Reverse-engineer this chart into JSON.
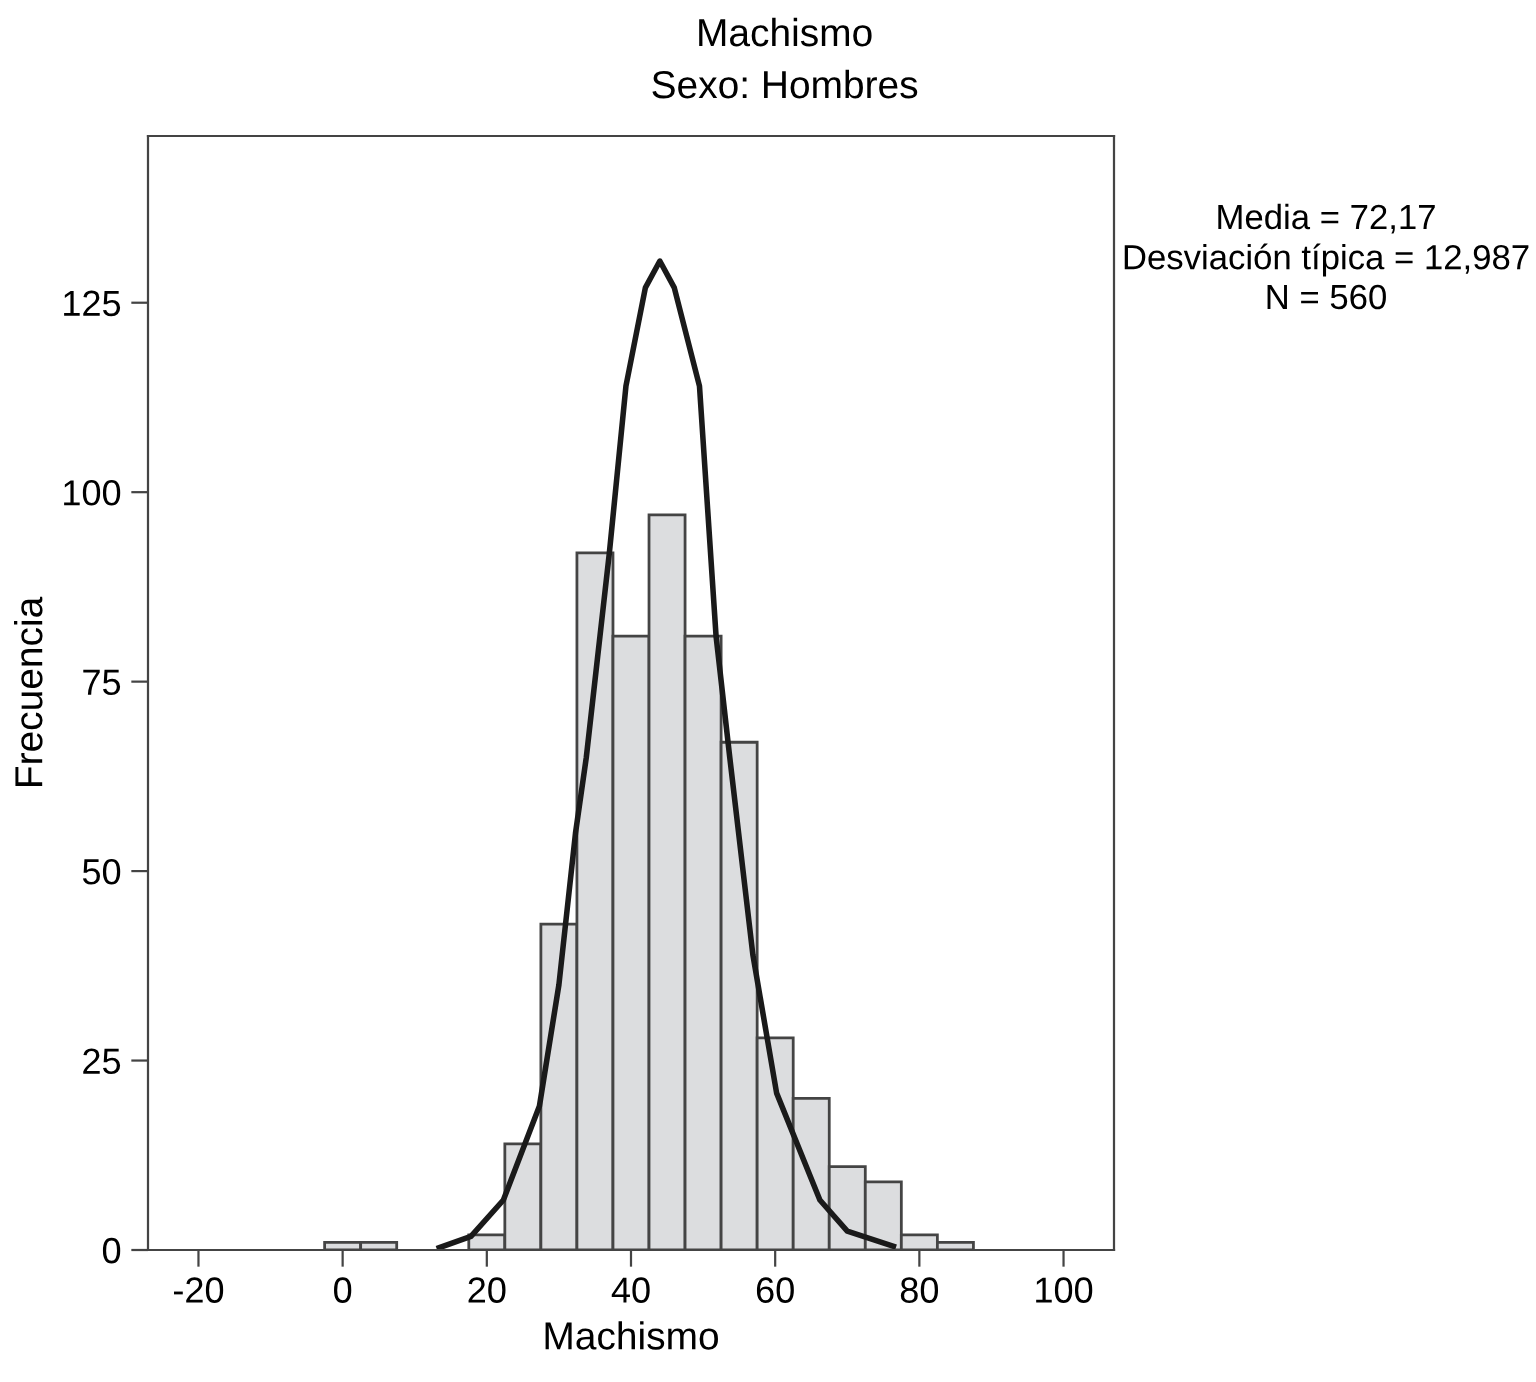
{
  "chart_data": {
    "type": "histogram",
    "title": "Machismo",
    "subtitle": "Sexo: Hombres",
    "xlabel": "Machismo",
    "ylabel": "Frecuencia",
    "bins": [
      -2.5,
      2.5,
      7.5,
      12.5,
      17.5,
      22.5,
      27.5,
      32.5,
      37.5,
      42.5,
      47.5,
      52.5,
      57.5,
      62.5,
      67.5,
      72.5,
      77.5,
      82.5,
      87.5
    ],
    "values": [
      1,
      1,
      0,
      0,
      2,
      14,
      43,
      92,
      81,
      97,
      81,
      67,
      28,
      20,
      11,
      9,
      2,
      1
    ],
    "color": "#dcdddf",
    "series": [
      {
        "type": "line",
        "color": "#1a1a1a",
        "x": [
          13.4,
          17.8,
          22.3,
          27.3,
          30,
          32.3,
          33.8,
          37,
          39.3,
          42,
          44,
          46,
          49.5,
          51.8,
          53.7,
          56.9,
          60.2,
          66.2,
          70,
          76.4
        ],
        "values": [
          0.3,
          1.8,
          6.6,
          19,
          35,
          55,
          65,
          92,
          114,
          127,
          130.5,
          127,
          114,
          81,
          65,
          39,
          20.7,
          6.6,
          2.5,
          0.5
        ]
      }
    ],
    "xlim": [
      -27,
      107
    ],
    "ylim": [
      0,
      147
    ],
    "xticks": [
      -20,
      0,
      20,
      40,
      60,
      80,
      100
    ],
    "yticks": [
      0,
      25,
      50,
      75,
      100,
      125
    ],
    "annotations": [
      "Media = 72,17",
      "Desviación típica = 12,987",
      "N = 560"
    ],
    "grid": false,
    "legend": false
  }
}
